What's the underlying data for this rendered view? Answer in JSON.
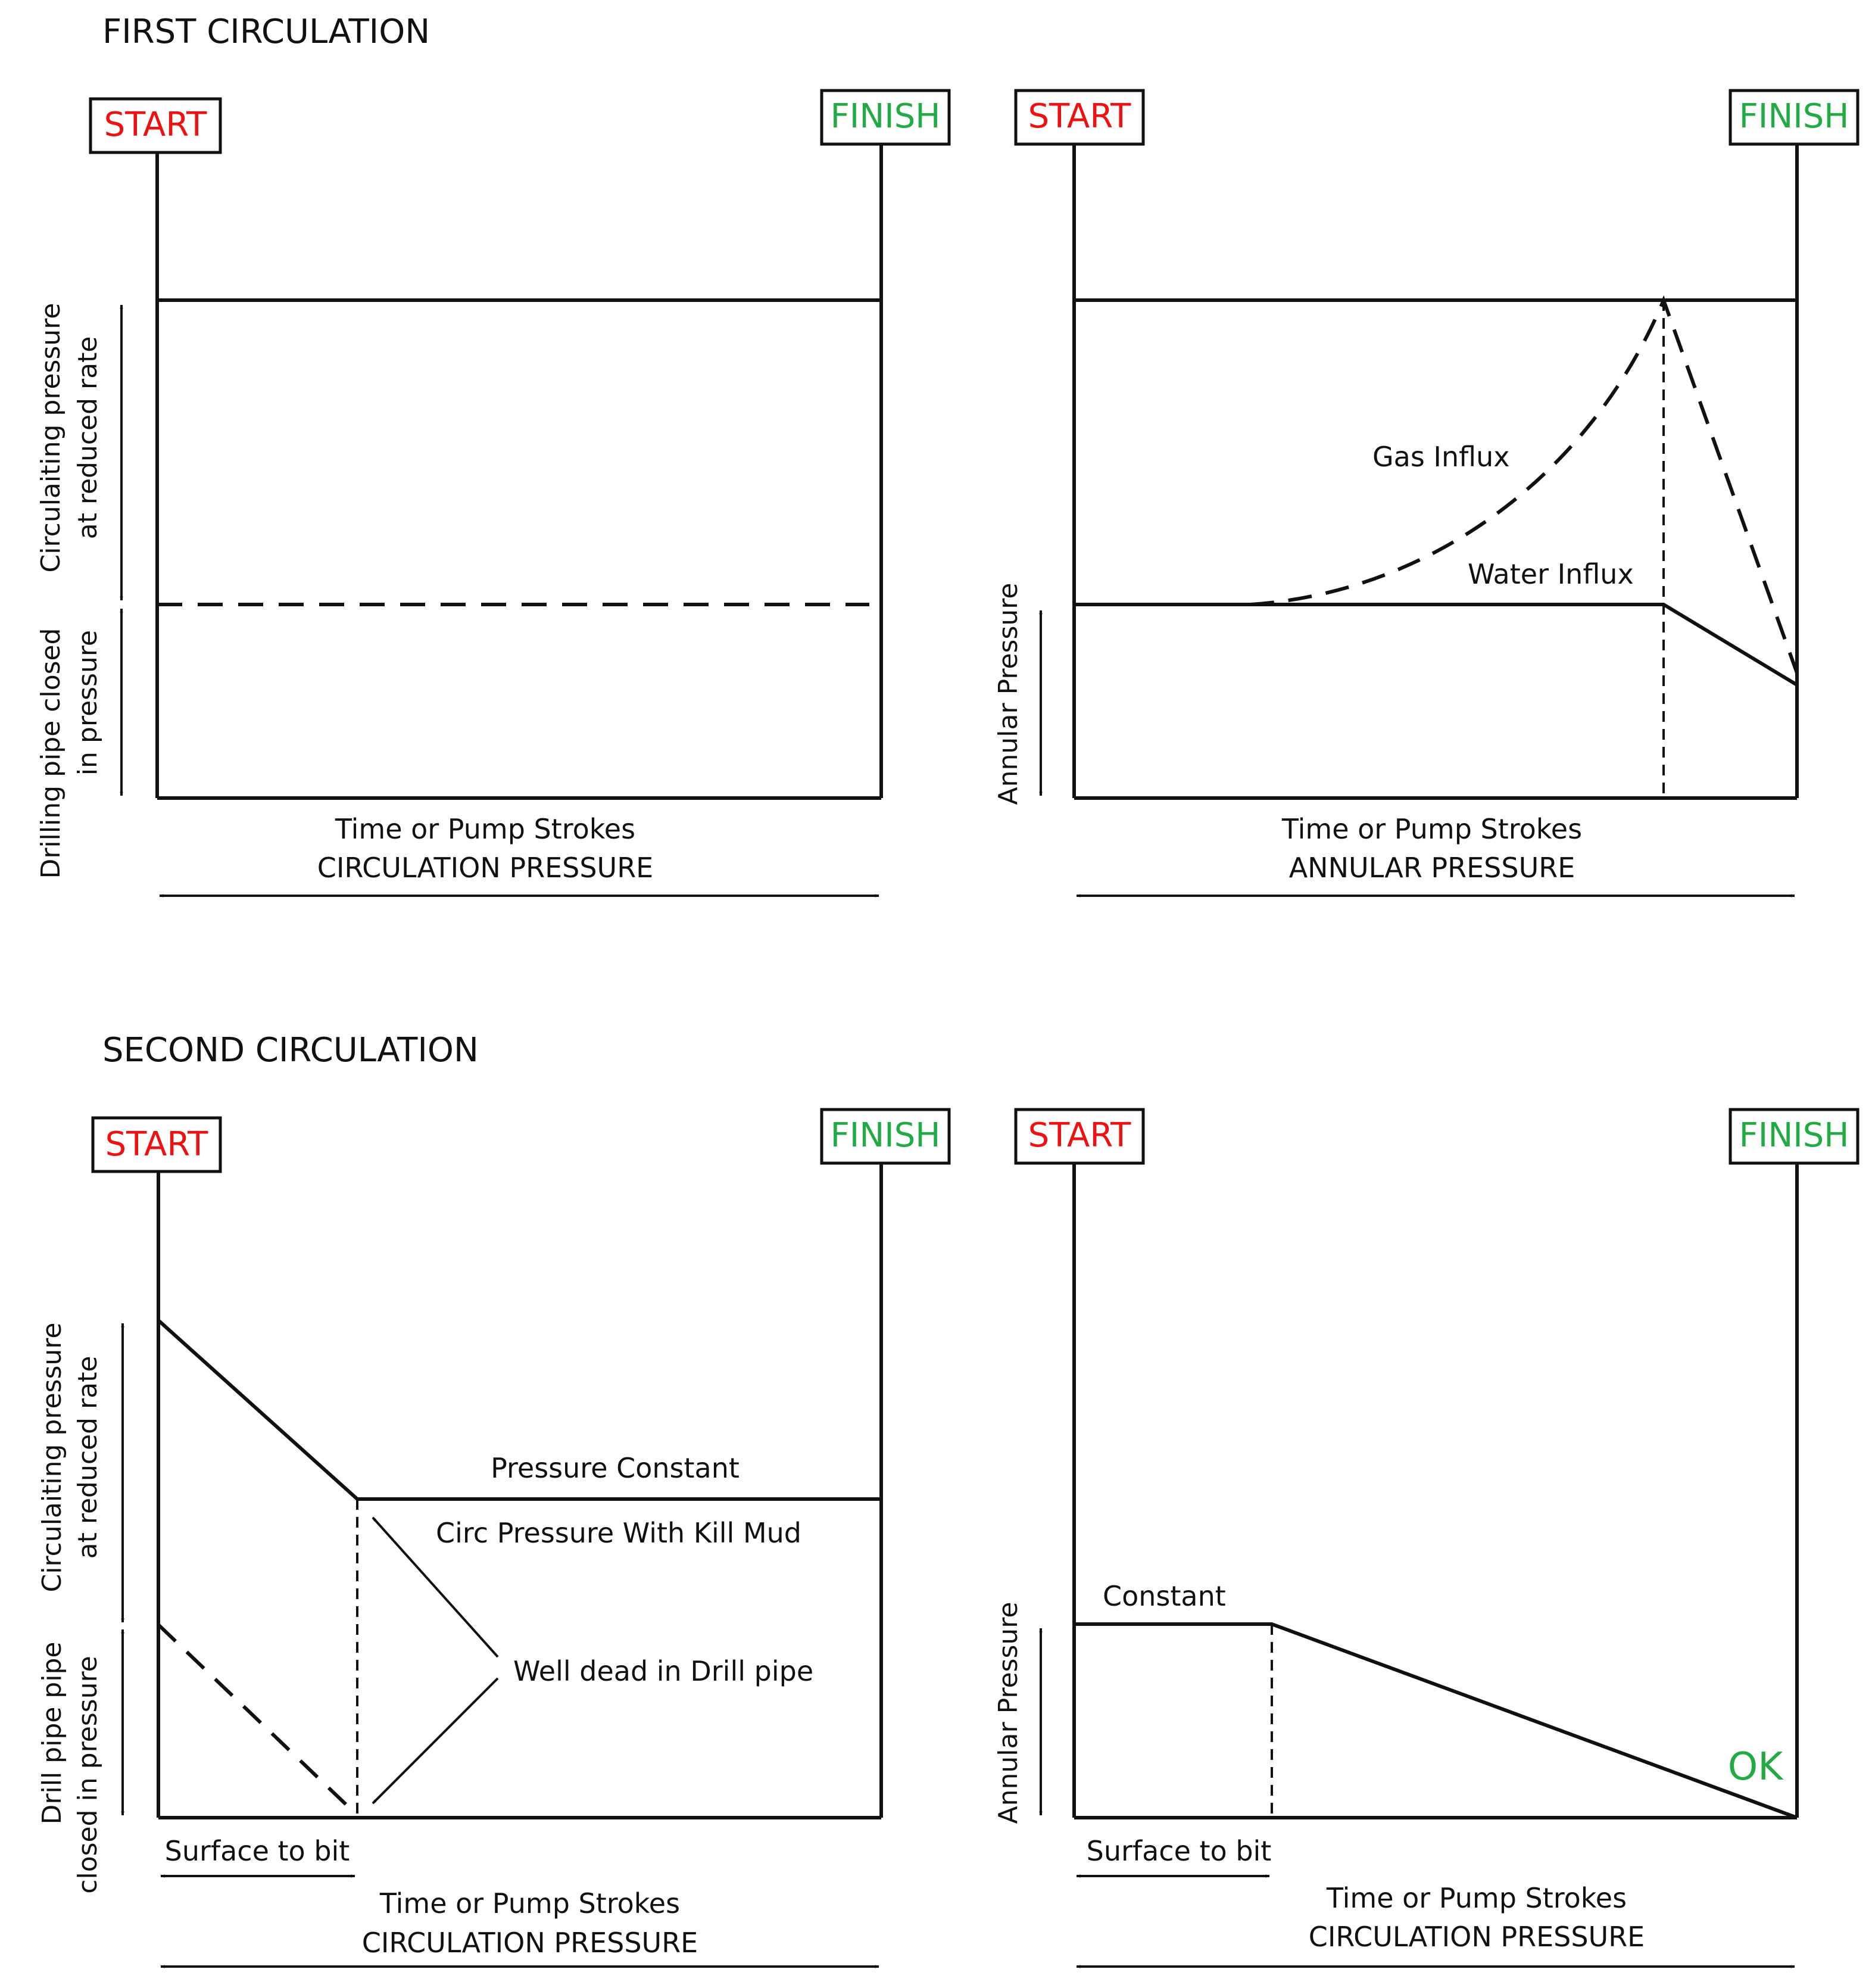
{
  "colors": {
    "start": "#ee1111",
    "finish": "#22aa44",
    "ok": "#22aa44",
    "ink": "#111111"
  },
  "sections": {
    "first": "FIRST CIRCULATION",
    "second": "SECOND  CIRCULATION"
  },
  "markers": {
    "start": "START",
    "finish": "FINISH"
  },
  "first_circulation": {
    "left_chart": {
      "y_label_upper_line1": "Circulaiting pressure",
      "y_label_upper_line2": "at reduced rate",
      "y_label_lower_line1": "Drilling pipe closed",
      "y_label_lower_line2": "in pressure",
      "x_label": "Time or Pump Strokes",
      "caption": "CIRCULATION PRESSURE"
    },
    "right_chart": {
      "gas_label": "Gas  Influx",
      "water_label": "Water Influx",
      "y_label": "Annular Pressure",
      "x_label": "Time or Pump Strokes",
      "caption": "ANNULAR PRESSURE"
    }
  },
  "second_circulation": {
    "left_chart": {
      "pressure_constant": "Pressure Constant",
      "kill_mud": "Circ Pressure With Kill Mud",
      "well_dead": "Well dead in Drill pipe",
      "surface_to_bit": "Surface to bit",
      "y_label_upper_line1": "Circulaiting pressure",
      "y_label_upper_line2": "at reduced rate",
      "y_label_lower_line1": "Drill pipe pipe",
      "y_label_lower_line2": "closed in pressure",
      "x_label": "Time or Pump Strokes",
      "caption": "CIRCULATION PRESSURE"
    },
    "right_chart": {
      "constant_label": "Constant",
      "ok_label": "OK",
      "surface_to_bit": "Surface to bit",
      "y_label": "Annular Pressure",
      "x_label": "Time or Pump Strokes",
      "caption": "CIRCULATION PRESSURE"
    }
  }
}
